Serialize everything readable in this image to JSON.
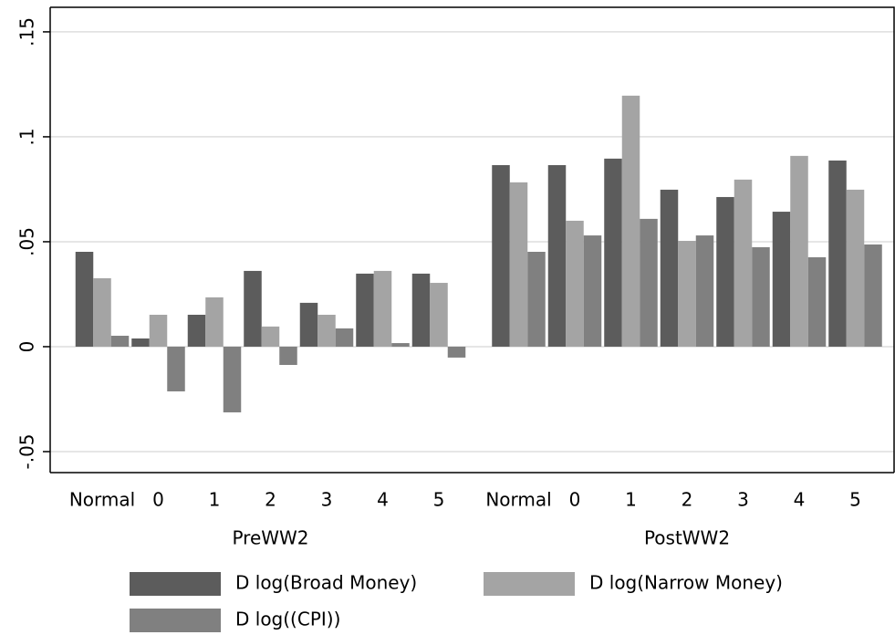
{
  "chart_data": {
    "type": "bar",
    "categories": [
      "Normal",
      "0",
      "1",
      "2",
      "3",
      "4",
      "5",
      "Normal",
      "0",
      "1",
      "2",
      "3",
      "4",
      "5"
    ],
    "groups": [
      "PreWW2",
      "PostWW2"
    ],
    "series": [
      {
        "name": "D log(Broad Money)",
        "color": "#5c5c5c",
        "values": [
          0.0452,
          0.0039,
          0.0152,
          0.0361,
          0.0209,
          0.0348,
          0.0348,
          0.0865,
          0.0865,
          0.0896,
          0.0748,
          0.0713,
          0.0643,
          0.0887
        ]
      },
      {
        "name": "D log(Narrow Money)",
        "color": "#a4a4a4",
        "values": [
          0.0326,
          0.0152,
          0.0235,
          0.0096,
          0.0152,
          0.0361,
          0.0304,
          0.0783,
          0.06,
          0.1196,
          0.0504,
          0.0796,
          0.0909,
          0.0748
        ]
      },
      {
        "name": "D log((CPI))",
        "color": "#808080",
        "values": [
          0.0052,
          -0.0213,
          -0.0313,
          -0.0087,
          0.0087,
          0.0017,
          -0.0052,
          0.0452,
          0.053,
          0.0609,
          0.053,
          0.0474,
          0.0426,
          0.0487
        ]
      }
    ],
    "ylim": [
      -0.06,
      0.1617
    ],
    "yticks": [
      {
        "value": -0.05,
        "label": "-.05"
      },
      0,
      {
        "value": 0.05,
        "label": ".05"
      },
      {
        "value": 0.1,
        "label": ".1"
      },
      {
        "value": 0.15,
        "label": ".15"
      }
    ],
    "grid": true
  }
}
